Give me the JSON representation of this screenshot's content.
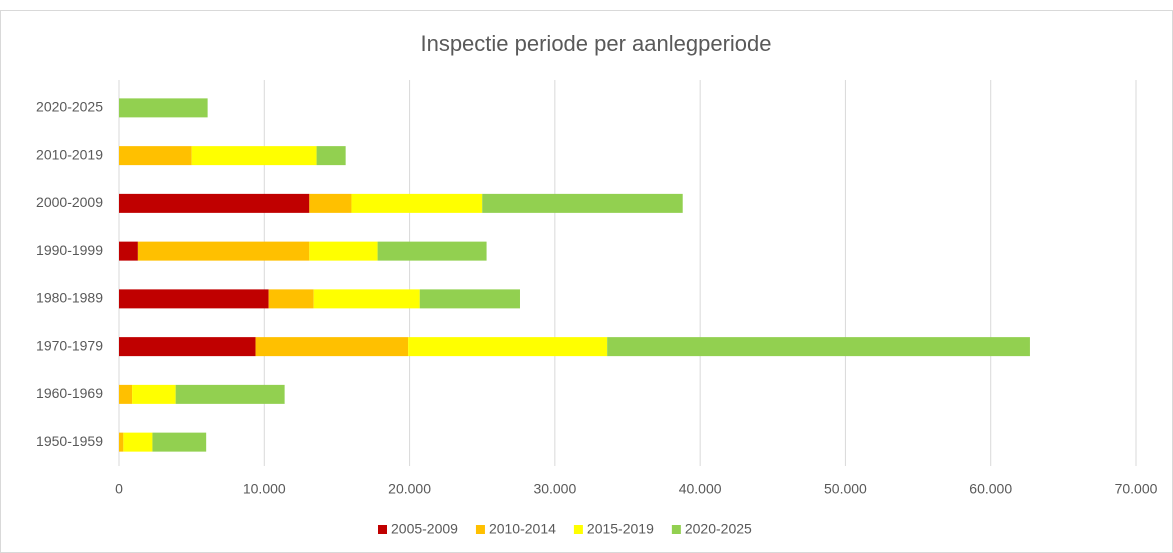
{
  "chart_data": {
    "type": "stacked-barh",
    "title": "Inspectie periode per aanlegperiode",
    "categories": [
      "2020-2025",
      "2010-2019",
      "2000-2009",
      "1990-1999",
      "1980-1989",
      "1970-1979",
      "1960-1969",
      "1950-1959"
    ],
    "series": [
      {
        "name": "2005-2009",
        "color": "#c00000",
        "values": [
          0,
          0,
          13100,
          1300,
          10300,
          9400,
          0,
          0
        ]
      },
      {
        "name": "2010-2014",
        "color": "#ffc000",
        "values": [
          0,
          5000,
          2900,
          11800,
          3100,
          10500,
          900,
          300
        ]
      },
      {
        "name": "2015-2019",
        "color": "#ffff00",
        "values": [
          0,
          8600,
          9000,
          4700,
          7300,
          13700,
          3000,
          2000
        ]
      },
      {
        "name": "2020-2025",
        "color": "#92d050",
        "values": [
          6100,
          2000,
          13800,
          7500,
          6900,
          29100,
          7500,
          3700
        ]
      }
    ],
    "xlim": [
      0,
      70000
    ],
    "xticks": [
      0,
      {
        "value": 10000,
        "label": "10.000"
      },
      {
        "value": 20000,
        "label": "20.000"
      },
      {
        "value": 30000,
        "label": "30.000"
      },
      {
        "value": 40000,
        "label": "40.000"
      },
      {
        "value": 50000,
        "label": "50.000"
      },
      {
        "value": 60000,
        "label": "60.000"
      },
      {
        "value": 70000,
        "label": "70.000"
      }
    ],
    "grid": true,
    "legend": "bottom"
  }
}
